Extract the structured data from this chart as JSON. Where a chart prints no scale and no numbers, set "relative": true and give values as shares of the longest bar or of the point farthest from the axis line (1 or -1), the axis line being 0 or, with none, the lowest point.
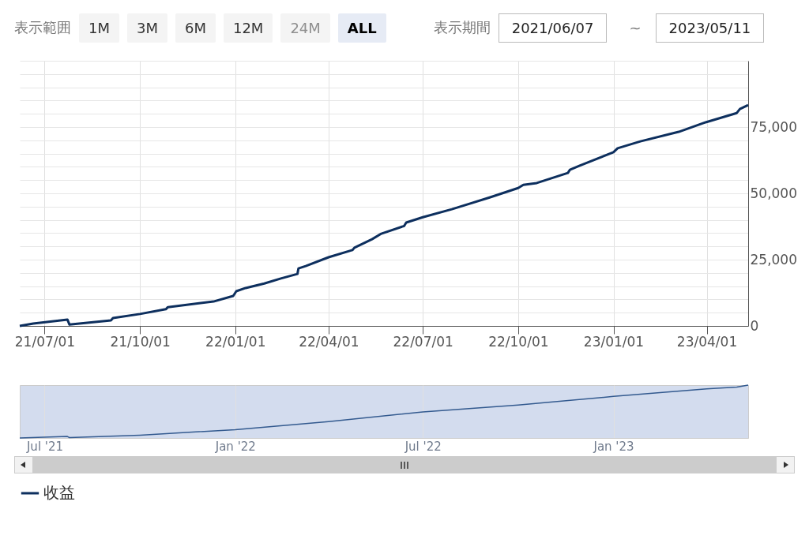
{
  "chart_data": [
    {
      "type": "line",
      "annotations": [
        "表示範囲",
        "1M",
        "3M",
        "6M",
        "12M",
        "24M",
        "ALL",
        "表示期間",
        "2021/06/07",
        "~",
        "2023/05/11"
      ],
      "x": [
        "2021-06-07",
        "2021-06-20",
        "2021-07-23",
        "2021-07-25",
        "2021-09-03",
        "2021-09-05",
        "2021-10-01",
        "2021-10-26",
        "2021-10-28",
        "2021-12-11",
        "2021-12-30",
        "2022-01-02",
        "2022-01-11",
        "2022-01-29",
        "2022-02-14",
        "2022-03-02",
        "2022-03-03",
        "2022-03-10",
        "2022-04-01",
        "2022-04-24",
        "2022-04-26",
        "2022-05-13",
        "2022-05-22",
        "2022-06-13",
        "2022-06-15",
        "2022-07-01",
        "2022-07-29",
        "2022-09-04",
        "2022-10-01",
        "2022-10-06",
        "2022-10-19",
        "2022-11-18",
        "2022-11-20",
        "2022-11-29",
        "2023-01-01",
        "2023-01-05",
        "2023-01-27",
        "2023-03-05",
        "2023-03-31",
        "2023-04-30",
        "2023-05-03",
        "2023-05-11"
      ],
      "series": [
        {
          "name": "收益",
          "color": "#0d2f5e",
          "values": [
            0,
            900,
            2400,
            500,
            2100,
            3000,
            4500,
            6300,
            7100,
            9200,
            11300,
            13100,
            14300,
            16000,
            17900,
            19600,
            21700,
            22600,
            25900,
            28600,
            29500,
            32700,
            34800,
            37700,
            39000,
            41000,
            44000,
            48500,
            52000,
            53200,
            53900,
            57700,
            58900,
            60400,
            65500,
            67000,
            69600,
            73200,
            76800,
            80300,
            81800,
            83300
          ]
        }
      ],
      "xlim": [
        "2021-06-07",
        "2023-05-11"
      ],
      "xticks": [
        {
          "value": "2021-07-01",
          "label": "21/07/01"
        },
        {
          "value": "2021-10-01",
          "label": "21/10/01"
        },
        {
          "value": "2022-01-01",
          "label": "22/01/01"
        },
        {
          "value": "2022-04-01",
          "label": "22/04/01"
        },
        {
          "value": "2022-07-01",
          "label": "22/07/01"
        },
        {
          "value": "2022-10-01",
          "label": "22/10/01"
        },
        {
          "value": "2023-01-01",
          "label": "23/01/01"
        },
        {
          "value": "2023-04-01",
          "label": "23/04/01"
        }
      ],
      "ylim": [
        0,
        100000
      ],
      "yticks": [
        {
          "value": 0,
          "label": "0"
        },
        {
          "value": 5000,
          "label": null
        },
        {
          "value": 10000,
          "label": null
        },
        {
          "value": 15000,
          "label": null
        },
        {
          "value": 20000,
          "label": null
        },
        {
          "value": 25000,
          "label": "25,000"
        },
        {
          "value": 30000,
          "label": null
        },
        {
          "value": 35000,
          "label": null
        },
        {
          "value": 40000,
          "label": null
        },
        {
          "value": 45000,
          "label": null
        },
        {
          "value": 50000,
          "label": "50,000"
        },
        {
          "value": 55000,
          "label": null
        },
        {
          "value": 60000,
          "label": null
        },
        {
          "value": 65000,
          "label": null
        },
        {
          "value": 70000,
          "label": null
        },
        {
          "value": 75000,
          "label": "75,000"
        },
        {
          "value": 80000,
          "label": null
        },
        {
          "value": 85000,
          "label": null
        },
        {
          "value": 90000,
          "label": null
        },
        {
          "value": 95000,
          "label": null
        },
        {
          "value": 100000,
          "label": null
        }
      ],
      "grid": true,
      "legend": "bottom"
    },
    {
      "type": "line",
      "relative": true,
      "x": [
        "2021-06-07",
        "2021-07-23",
        "2021-07-25",
        "2021-10-01",
        "2022-01-01",
        "2022-04-01",
        "2022-07-01",
        "2022-10-01",
        "2023-01-01",
        "2023-04-01",
        "2023-04-30",
        "2023-05-11"
      ],
      "series": [
        {
          "color": "#335a8f",
          "values": [
            0,
            0.029,
            0.006,
            0.054,
            0.157,
            0.311,
            0.492,
            0.624,
            0.786,
            0.929,
            0.964,
            1
          ]
        }
      ],
      "xlim": [
        "2021-06-07",
        "2023-05-11"
      ],
      "xticks": [
        {
          "value": "2021-07-01",
          "label": "Jul '21"
        },
        {
          "value": "2022-01-01",
          "label": "Jan '22"
        },
        {
          "value": "2022-07-01",
          "label": "Jul '22"
        },
        {
          "value": "2023-01-01",
          "label": "Jan '23"
        }
      ],
      "grid": "x",
      "tick_labels": "x"
    }
  ]
}
